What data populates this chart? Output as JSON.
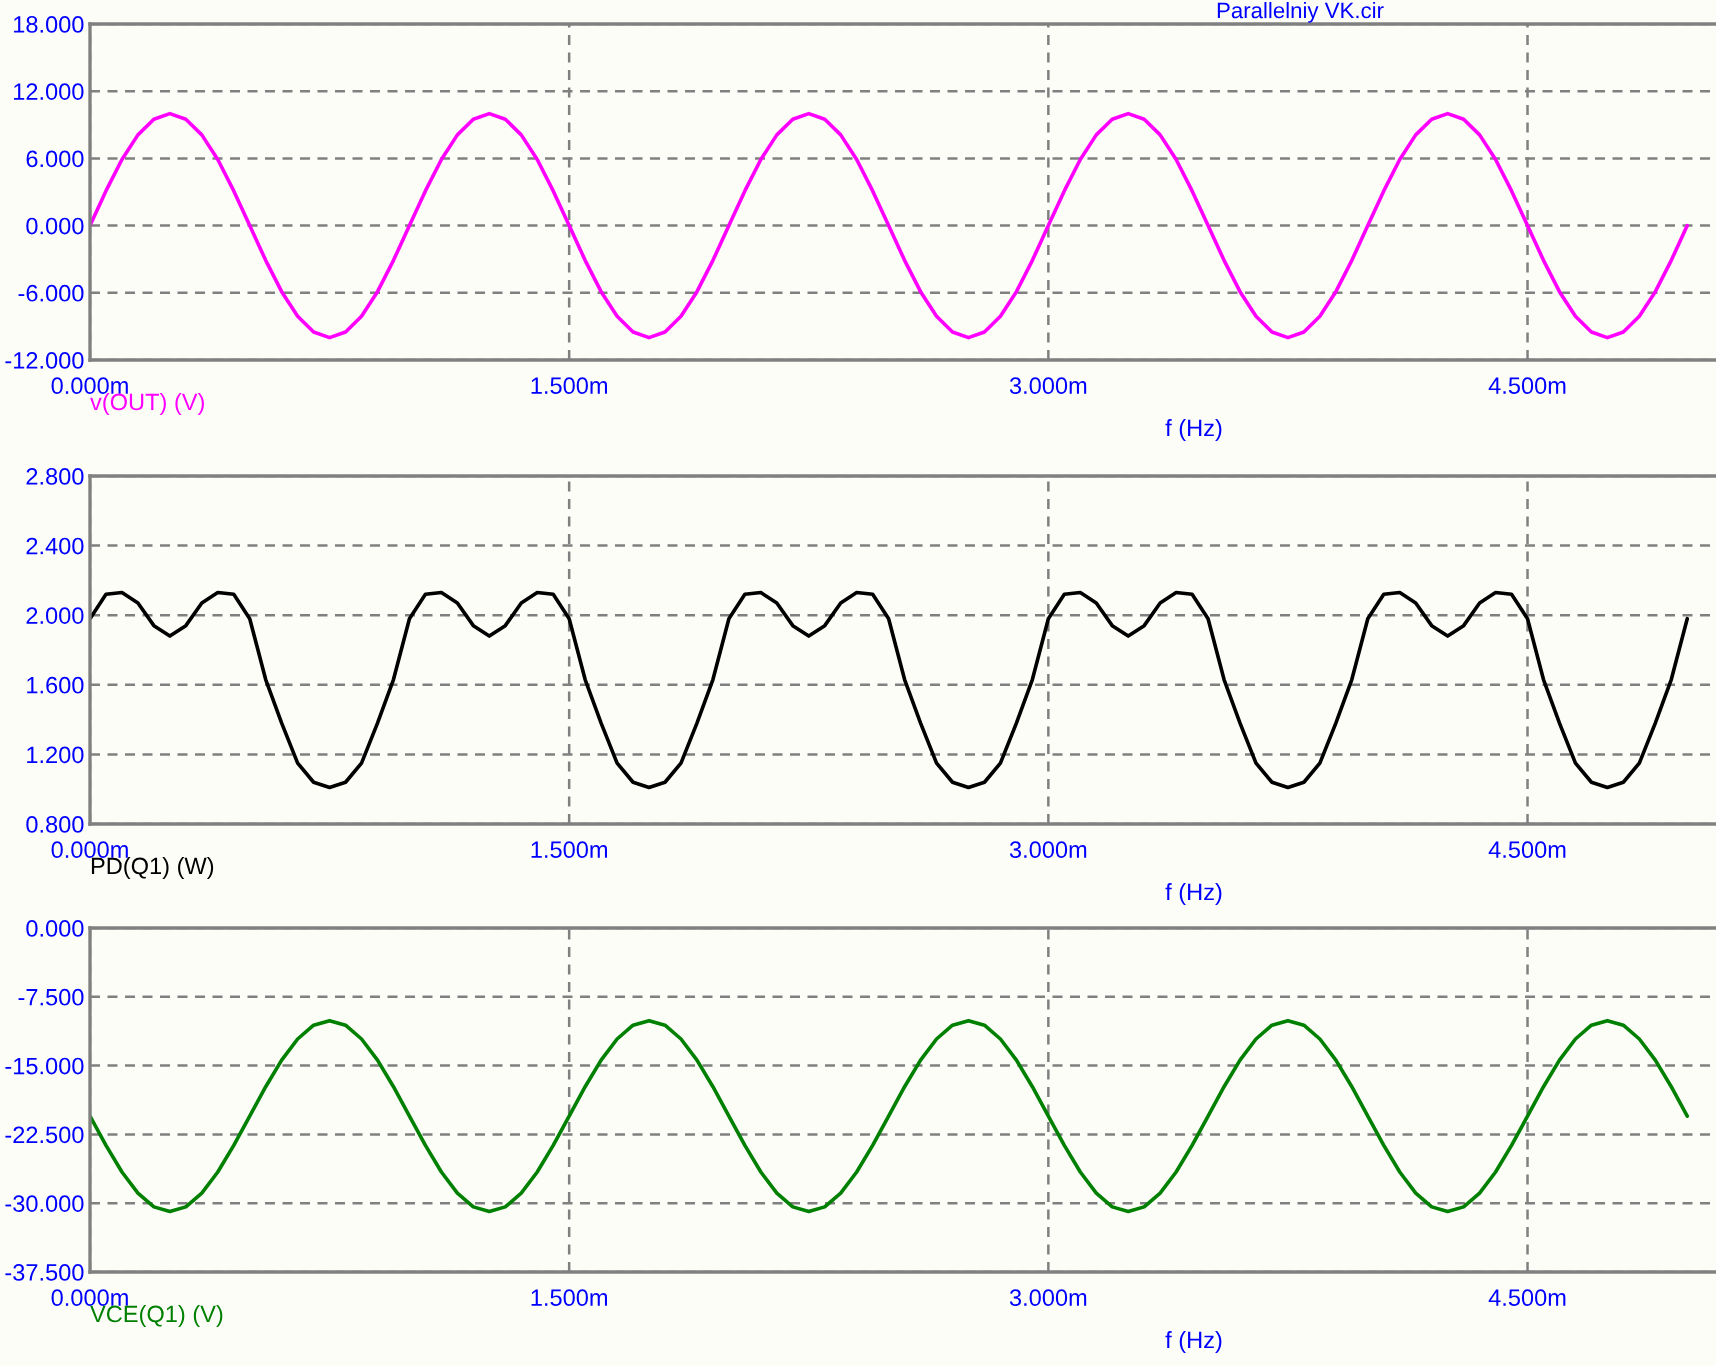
{
  "chart_data": [
    {
      "type": "line",
      "title": "Parallelniy VK.cir",
      "xlabel": "f (Hz)",
      "grid": true,
      "legend": false,
      "xlim": [
        0,
        5.09
      ],
      "ylim": [
        -12,
        18
      ],
      "xticks": [
        {
          "value": 0,
          "label": "0.000m"
        },
        {
          "value": 1.5,
          "label": "1.500m"
        },
        {
          "value": 3,
          "label": "3.000m"
        },
        {
          "value": 4.5,
          "label": "4.500m"
        }
      ],
      "yticks": [
        {
          "value": -12,
          "label": "-12.000"
        },
        {
          "value": -6,
          "label": "-6.000"
        },
        {
          "value": 0,
          "label": "0.000"
        },
        {
          "value": 6,
          "label": "6.000"
        },
        {
          "value": 12,
          "label": "12.000"
        },
        {
          "value": 18,
          "label": "18.000"
        }
      ],
      "x": [
        0,
        0.05,
        0.1,
        0.15,
        0.2,
        0.25,
        0.3,
        0.35,
        0.4,
        0.45,
        0.5,
        0.55,
        0.6,
        0.65,
        0.7,
        0.75,
        0.8,
        0.85,
        0.9,
        0.95,
        1,
        1.05,
        1.1,
        1.15,
        1.2,
        1.25,
        1.3,
        1.35,
        1.4,
        1.45,
        1.5,
        1.55,
        1.6,
        1.65,
        1.7,
        1.75,
        1.8,
        1.85,
        1.9,
        1.95,
        2,
        2.05,
        2.1,
        2.15,
        2.2,
        2.25,
        2.3,
        2.35,
        2.4,
        2.45,
        2.5,
        2.55,
        2.6,
        2.65,
        2.7,
        2.75,
        2.8,
        2.85,
        2.9,
        2.95,
        3,
        3.05,
        3.1,
        3.15,
        3.2,
        3.25,
        3.3,
        3.35,
        3.4,
        3.45,
        3.5,
        3.55,
        3.6,
        3.65,
        3.7,
        3.75,
        3.8,
        3.85,
        3.9,
        3.95,
        4,
        4.05,
        4.1,
        4.15,
        4.2,
        4.25,
        4.3,
        4.35,
        4.4,
        4.45,
        4.5,
        4.55,
        4.6,
        4.65,
        4.7,
        4.75,
        4.8,
        4.85,
        4.9,
        4.95,
        5
      ],
      "series": [
        {
          "name": "v(OUT) (V)",
          "color": "#ff00ff",
          "values": [
            0,
            3.1,
            5.9,
            8.1,
            9.5,
            10,
            9.5,
            8.1,
            5.9,
            3.1,
            0,
            -3.1,
            -5.9,
            -8.1,
            -9.5,
            -10,
            -9.5,
            -8.1,
            -5.9,
            -3.1,
            0,
            3.1,
            5.9,
            8.1,
            9.5,
            10,
            9.5,
            8.1,
            5.9,
            3.1,
            0,
            -3.1,
            -5.9,
            -8.1,
            -9.5,
            -10,
            -9.5,
            -8.1,
            -5.9,
            -3.1,
            0,
            3.1,
            5.9,
            8.1,
            9.5,
            10,
            9.5,
            8.1,
            5.9,
            3.1,
            0,
            -3.1,
            -5.9,
            -8.1,
            -9.5,
            -10,
            -9.5,
            -8.1,
            -5.9,
            -3.1,
            0,
            3.1,
            5.9,
            8.1,
            9.5,
            10,
            9.5,
            8.1,
            5.9,
            3.1,
            0,
            -3.1,
            -5.9,
            -8.1,
            -9.5,
            -10,
            -9.5,
            -8.1,
            -5.9,
            -3.1,
            0,
            3.1,
            5.9,
            8.1,
            9.5,
            10,
            9.5,
            8.1,
            5.9,
            3.1,
            0,
            -3.1,
            -5.9,
            -8.1,
            -9.5,
            -10,
            -9.5,
            -8.1,
            -5.9,
            -3.1,
            0
          ]
        }
      ]
    },
    {
      "type": "line",
      "xlabel": "f (Hz)",
      "grid": true,
      "legend": false,
      "xlim": [
        0,
        5.09
      ],
      "ylim": [
        0.8,
        2.8
      ],
      "xticks": [
        {
          "value": 0,
          "label": "0.000m"
        },
        {
          "value": 1.5,
          "label": "1.500m"
        },
        {
          "value": 3,
          "label": "3.000m"
        },
        {
          "value": 4.5,
          "label": "4.500m"
        }
      ],
      "yticks": [
        {
          "value": 0.8,
          "label": "0.800"
        },
        {
          "value": 1.2,
          "label": "1.200"
        },
        {
          "value": 1.6,
          "label": "1.600"
        },
        {
          "value": 2.0,
          "label": "2.000"
        },
        {
          "value": 2.4,
          "label": "2.400"
        },
        {
          "value": 2.8,
          "label": "2.800"
        }
      ],
      "x": [
        0,
        0.05,
        0.1,
        0.15,
        0.2,
        0.25,
        0.3,
        0.35,
        0.4,
        0.45,
        0.5,
        0.55,
        0.6,
        0.65,
        0.7,
        0.75,
        0.8,
        0.85,
        0.9,
        0.95,
        1,
        1.05,
        1.1,
        1.15,
        1.2,
        1.25,
        1.3,
        1.35,
        1.4,
        1.45,
        1.5,
        1.55,
        1.6,
        1.65,
        1.7,
        1.75,
        1.8,
        1.85,
        1.9,
        1.95,
        2,
        2.05,
        2.1,
        2.15,
        2.2,
        2.25,
        2.3,
        2.35,
        2.4,
        2.45,
        2.5,
        2.55,
        2.6,
        2.65,
        2.7,
        2.75,
        2.8,
        2.85,
        2.9,
        2.95,
        3,
        3.05,
        3.1,
        3.15,
        3.2,
        3.25,
        3.3,
        3.35,
        3.4,
        3.45,
        3.5,
        3.55,
        3.6,
        3.65,
        3.7,
        3.75,
        3.8,
        3.85,
        3.9,
        3.95,
        4,
        4.05,
        4.1,
        4.15,
        4.2,
        4.25,
        4.3,
        4.35,
        4.4,
        4.45,
        4.5,
        4.55,
        4.6,
        4.65,
        4.7,
        4.75,
        4.8,
        4.85,
        4.9,
        4.95,
        5
      ],
      "series": [
        {
          "name": "PD(Q1) (W)",
          "color": "#000000",
          "values": [
            1.98,
            2.12,
            2.13,
            2.07,
            1.94,
            1.88,
            1.94,
            2.07,
            2.13,
            2.12,
            1.98,
            1.63,
            1.38,
            1.15,
            1.04,
            1.01,
            1.04,
            1.15,
            1.38,
            1.63,
            1.98,
            2.12,
            2.13,
            2.07,
            1.94,
            1.88,
            1.94,
            2.07,
            2.13,
            2.12,
            1.98,
            1.63,
            1.38,
            1.15,
            1.04,
            1.01,
            1.04,
            1.15,
            1.38,
            1.63,
            1.98,
            2.12,
            2.13,
            2.07,
            1.94,
            1.88,
            1.94,
            2.07,
            2.13,
            2.12,
            1.98,
            1.63,
            1.38,
            1.15,
            1.04,
            1.01,
            1.04,
            1.15,
            1.38,
            1.63,
            1.98,
            2.12,
            2.13,
            2.07,
            1.94,
            1.88,
            1.94,
            2.07,
            2.13,
            2.12,
            1.98,
            1.63,
            1.38,
            1.15,
            1.04,
            1.01,
            1.04,
            1.15,
            1.38,
            1.63,
            1.98,
            2.12,
            2.13,
            2.07,
            1.94,
            1.88,
            1.94,
            2.07,
            2.13,
            2.12,
            1.98,
            1.63,
            1.38,
            1.15,
            1.04,
            1.01,
            1.04,
            1.15,
            1.38,
            1.63,
            1.98
          ]
        }
      ]
    },
    {
      "type": "line",
      "xlabel": "f (Hz)",
      "grid": true,
      "legend": false,
      "xlim": [
        0,
        5.09
      ],
      "ylim": [
        -37.5,
        0
      ],
      "xticks": [
        {
          "value": 0,
          "label": "0.000m"
        },
        {
          "value": 1.5,
          "label": "1.500m"
        },
        {
          "value": 3,
          "label": "3.000m"
        },
        {
          "value": 4.5,
          "label": "4.500m"
        }
      ],
      "yticks": [
        {
          "value": -37.5,
          "label": "-37.500"
        },
        {
          "value": -30,
          "label": "-30.000"
        },
        {
          "value": -22.5,
          "label": "-22.500"
        },
        {
          "value": -15,
          "label": "-15.000"
        },
        {
          "value": -7.5,
          "label": "-7.500"
        },
        {
          "value": 0,
          "label": "0.000"
        }
      ],
      "x": [
        0,
        0.05,
        0.1,
        0.15,
        0.2,
        0.25,
        0.3,
        0.35,
        0.4,
        0.45,
        0.5,
        0.55,
        0.6,
        0.65,
        0.7,
        0.75,
        0.8,
        0.85,
        0.9,
        0.95,
        1,
        1.05,
        1.1,
        1.15,
        1.2,
        1.25,
        1.3,
        1.35,
        1.4,
        1.45,
        1.5,
        1.55,
        1.6,
        1.65,
        1.7,
        1.75,
        1.8,
        1.85,
        1.9,
        1.95,
        2,
        2.05,
        2.1,
        2.15,
        2.2,
        2.25,
        2.3,
        2.35,
        2.4,
        2.45,
        2.5,
        2.55,
        2.6,
        2.65,
        2.7,
        2.75,
        2.8,
        2.85,
        2.9,
        2.95,
        3,
        3.05,
        3.1,
        3.15,
        3.2,
        3.25,
        3.3,
        3.35,
        3.4,
        3.45,
        3.5,
        3.55,
        3.6,
        3.65,
        3.7,
        3.75,
        3.8,
        3.85,
        3.9,
        3.95,
        4,
        4.05,
        4.1,
        4.15,
        4.2,
        4.25,
        4.3,
        4.35,
        4.4,
        4.45,
        4.5,
        4.55,
        4.6,
        4.65,
        4.7,
        4.75,
        4.8,
        4.85,
        4.9,
        4.95,
        5
      ],
      "series": [
        {
          "name": "VCE(Q1) (V)",
          "color": "#008000",
          "values": [
            -20.5,
            -23.7,
            -26.6,
            -28.9,
            -30.4,
            -30.9,
            -30.4,
            -28.9,
            -26.6,
            -23.7,
            -20.5,
            -17.3,
            -14.4,
            -12.1,
            -10.6,
            -10.1,
            -10.6,
            -12.1,
            -14.4,
            -17.3,
            -20.5,
            -23.7,
            -26.6,
            -28.9,
            -30.4,
            -30.9,
            -30.4,
            -28.9,
            -26.6,
            -23.7,
            -20.5,
            -17.3,
            -14.4,
            -12.1,
            -10.6,
            -10.1,
            -10.6,
            -12.1,
            -14.4,
            -17.3,
            -20.5,
            -23.7,
            -26.6,
            -28.9,
            -30.4,
            -30.9,
            -30.4,
            -28.9,
            -26.6,
            -23.7,
            -20.5,
            -17.3,
            -14.4,
            -12.1,
            -10.6,
            -10.1,
            -10.6,
            -12.1,
            -14.4,
            -17.3,
            -20.5,
            -23.7,
            -26.6,
            -28.9,
            -30.4,
            -30.9,
            -30.4,
            -28.9,
            -26.6,
            -23.7,
            -20.5,
            -17.3,
            -14.4,
            -12.1,
            -10.6,
            -10.1,
            -10.6,
            -12.1,
            -14.4,
            -17.3,
            -20.5,
            -23.7,
            -26.6,
            -28.9,
            -30.4,
            -30.9,
            -30.4,
            -28.9,
            -26.6,
            -23.7,
            -20.5,
            -17.3,
            -14.4,
            -12.1,
            -10.6,
            -10.1,
            -10.6,
            -12.1,
            -14.4,
            -17.3,
            -20.5
          ]
        }
      ]
    }
  ]
}
